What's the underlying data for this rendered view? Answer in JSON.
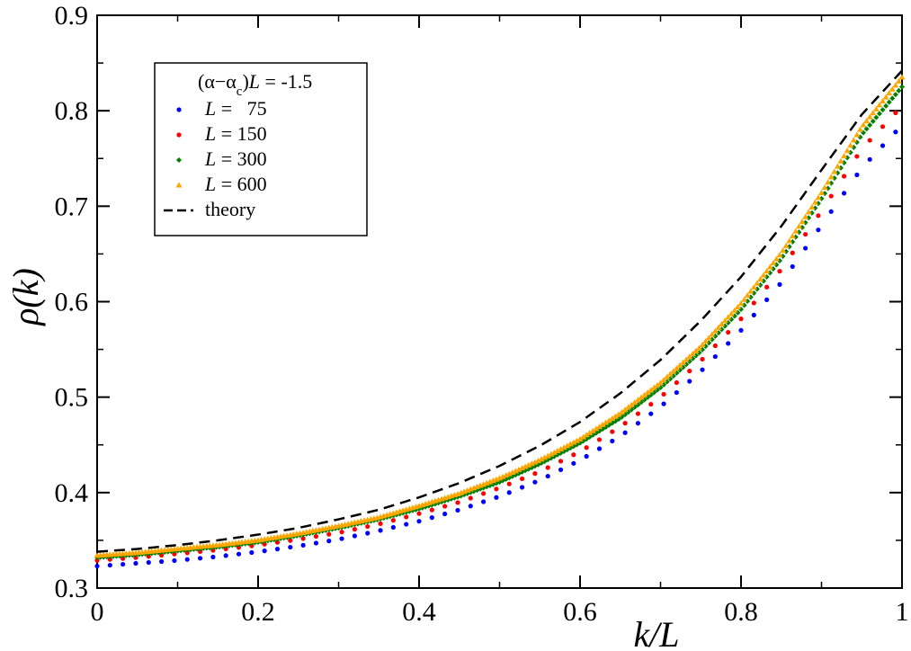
{
  "chart_data": {
    "type": "scatter",
    "title": "",
    "xlabel": "k/L",
    "ylabel": "ρ(k)",
    "xlim": [
      0,
      1
    ],
    "ylim": [
      0.3,
      0.9
    ],
    "x_ticks": [
      "0",
      "0.2",
      "0.4",
      "0.6",
      "0.8",
      "1"
    ],
    "y_ticks": [
      "0.3",
      "0.4",
      "0.5",
      "0.6",
      "0.7",
      "0.8",
      "0.9"
    ],
    "legend": {
      "position": "top-left",
      "header": "(α−α_c)L = -1.5",
      "header_parts": {
        "open": "(α−α",
        "sub": "c",
        "close": ")",
        "var": "L",
        "rest": " = -1.5"
      }
    },
    "series": [
      {
        "name": "L =   75",
        "label_var": "L",
        "label_rest": " =   75",
        "color": "#0000ff",
        "marker": "circle",
        "x": [
          0.0,
          0.05,
          0.1,
          0.15,
          0.2,
          0.25,
          0.3,
          0.35,
          0.4,
          0.45,
          0.5,
          0.55,
          0.6,
          0.65,
          0.7,
          0.75,
          0.8,
          0.85,
          0.9,
          0.95,
          1.0
        ],
        "y": [
          0.323,
          0.326,
          0.329,
          0.333,
          0.338,
          0.344,
          0.351,
          0.36,
          0.37,
          0.382,
          0.396,
          0.413,
          0.434,
          0.459,
          0.49,
          0.527,
          0.57,
          0.62,
          0.68,
          0.74,
          0.785
        ]
      },
      {
        "name": "L = 150",
        "label_var": "L",
        "label_rest": " = 150",
        "color": "#ff0000",
        "marker": "circle",
        "x": [
          0.0,
          0.05,
          0.1,
          0.15,
          0.2,
          0.25,
          0.3,
          0.35,
          0.4,
          0.45,
          0.5,
          0.55,
          0.6,
          0.65,
          0.7,
          0.75,
          0.8,
          0.85,
          0.9,
          0.95,
          1.0
        ],
        "y": [
          0.329,
          0.332,
          0.336,
          0.34,
          0.345,
          0.351,
          0.358,
          0.367,
          0.378,
          0.39,
          0.405,
          0.422,
          0.443,
          0.469,
          0.5,
          0.538,
          0.582,
          0.634,
          0.695,
          0.76,
          0.805
        ]
      },
      {
        "name": "L = 300",
        "label_var": "L",
        "label_rest": " = 300",
        "color": "#008000",
        "marker": "diamond",
        "x": [
          0.0,
          0.05,
          0.1,
          0.15,
          0.2,
          0.25,
          0.3,
          0.35,
          0.4,
          0.45,
          0.5,
          0.55,
          0.6,
          0.65,
          0.7,
          0.75,
          0.8,
          0.85,
          0.9,
          0.95,
          1.0
        ],
        "y": [
          0.332,
          0.335,
          0.339,
          0.343,
          0.348,
          0.355,
          0.363,
          0.372,
          0.383,
          0.396,
          0.411,
          0.43,
          0.452,
          0.478,
          0.51,
          0.548,
          0.592,
          0.645,
          0.708,
          0.775,
          0.825
        ]
      },
      {
        "name": "L = 600",
        "label_var": "L",
        "label_rest": " = 600",
        "color": "#ffa500",
        "marker": "triangle",
        "x": [
          0.0,
          0.05,
          0.1,
          0.15,
          0.2,
          0.25,
          0.3,
          0.35,
          0.4,
          0.45,
          0.5,
          0.55,
          0.6,
          0.65,
          0.7,
          0.75,
          0.8,
          0.85,
          0.9,
          0.95,
          1.0
        ],
        "y": [
          0.334,
          0.337,
          0.341,
          0.345,
          0.35,
          0.357,
          0.365,
          0.374,
          0.386,
          0.399,
          0.415,
          0.434,
          0.456,
          0.483,
          0.515,
          0.553,
          0.598,
          0.651,
          0.714,
          0.783,
          0.835
        ]
      },
      {
        "name": "theory",
        "label_var": "",
        "label_rest": "theory",
        "color": "#000000",
        "marker": "dashed-line",
        "x": [
          0.0,
          0.05,
          0.1,
          0.15,
          0.2,
          0.25,
          0.3,
          0.35,
          0.4,
          0.45,
          0.5,
          0.55,
          0.6,
          0.65,
          0.7,
          0.75,
          0.8,
          0.85,
          0.9,
          0.95,
          1.0
        ],
        "y": [
          0.338,
          0.341,
          0.345,
          0.35,
          0.356,
          0.363,
          0.372,
          0.382,
          0.395,
          0.41,
          0.428,
          0.449,
          0.474,
          0.504,
          0.539,
          0.58,
          0.626,
          0.679,
          0.738,
          0.796,
          0.842
        ]
      }
    ]
  }
}
